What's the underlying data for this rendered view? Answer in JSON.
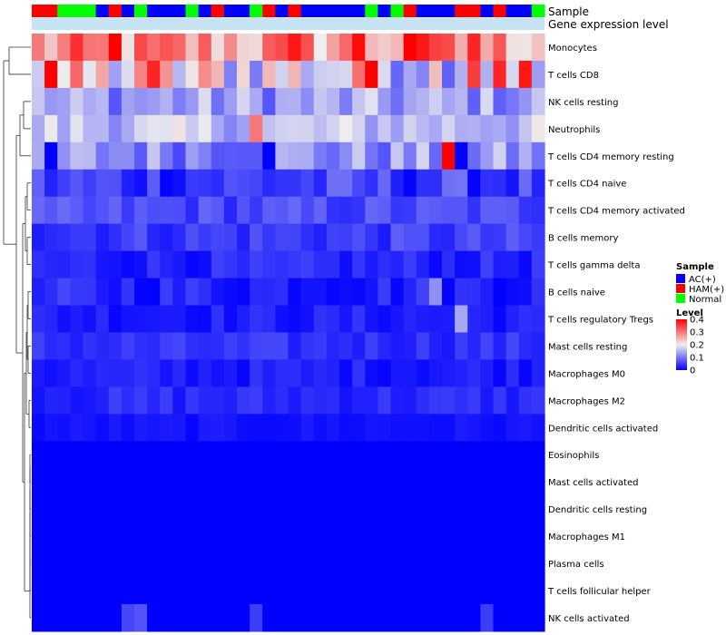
{
  "chart_data": {
    "type": "heatmap",
    "annotations": {
      "sample_label": "Sample",
      "gene_label": "Gene expression level",
      "gene_color": "#c6e3f4",
      "sample_sequence": [
        "HAM(+)",
        "HAM(+)",
        "Normal",
        "Normal",
        "Normal",
        "AC(+)",
        "HAM(+)",
        "AC(+)",
        "Normal",
        "AC(+)",
        "AC(+)",
        "AC(+)",
        "Normal",
        "AC(+)",
        "HAM(+)",
        "AC(+)",
        "AC(+)",
        "Normal",
        "HAM(+)",
        "AC(+)",
        "HAM(+)",
        "AC(+)",
        "AC(+)",
        "AC(+)",
        "AC(+)",
        "AC(+)",
        "Normal",
        "AC(+)",
        "Normal",
        "HAM(+)",
        "AC(+)",
        "AC(+)",
        "AC(+)",
        "HAM(+)",
        "HAM(+)",
        "AC(+)",
        "HAM(+)",
        "AC(+)",
        "AC(+)",
        "Normal"
      ]
    },
    "rows": [
      "Monocytes",
      "T cells CD8",
      "NK cells resting",
      "Neutrophils",
      "T cells CD4 memory resting",
      "T cells CD4 naive",
      "T cells CD4 memory activated",
      "B cells memory",
      "T cells gamma delta",
      "B cells naive",
      "T cells regulatory  Tregs",
      "Mast cells resting",
      "Macrophages M0",
      "Macrophages M2",
      "Dendritic cells activated",
      "Eosinophils",
      "Mast cells activated",
      "Dendritic cells resting",
      "Macrophages M1",
      "Plasma cells",
      "T cells follicular helper",
      "NK cells activated"
    ],
    "n_columns": 40,
    "row_base_levels": [
      0.27,
      0.2,
      0.13,
      0.16,
      0.12,
      0.05,
      0.06,
      0.05,
      0.03,
      0.03,
      0.025,
      0.04,
      0.025,
      0.035,
      0.015,
      0.0,
      0.0,
      0.0,
      0.0,
      0.0,
      0.0,
      0.0
    ],
    "row_variation": [
      0.09,
      0.12,
      0.06,
      0.05,
      0.06,
      0.05,
      0.03,
      0.03,
      0.025,
      0.03,
      0.02,
      0.02,
      0.02,
      0.02,
      0.01,
      0.0,
      0.0,
      0.0,
      0.0,
      0.0,
      0.0,
      0.03
    ],
    "highlight_cells": [
      {
        "row": 0,
        "col": 6,
        "value": 0.4
      },
      {
        "row": 0,
        "col": 20,
        "value": 0.38
      },
      {
        "row": 0,
        "col": 25,
        "value": 0.39
      },
      {
        "row": 0,
        "col": 29,
        "value": 0.4
      },
      {
        "row": 0,
        "col": 30,
        "value": 0.38
      },
      {
        "row": 0,
        "col": 34,
        "value": 0.37
      },
      {
        "row": 1,
        "col": 1,
        "value": 0.4
      },
      {
        "row": 1,
        "col": 9,
        "value": 0.37
      },
      {
        "row": 1,
        "col": 26,
        "value": 0.4
      },
      {
        "row": 1,
        "col": 34,
        "value": 0.35
      },
      {
        "row": 1,
        "col": 36,
        "value": 0.37
      },
      {
        "row": 1,
        "col": 38,
        "value": 0.38
      },
      {
        "row": 3,
        "col": 17,
        "value": 0.3
      },
      {
        "row": 4,
        "col": 32,
        "value": 0.4
      },
      {
        "row": 4,
        "col": 1,
        "value": 0.0
      },
      {
        "row": 4,
        "col": 18,
        "value": 0.0
      },
      {
        "row": 4,
        "col": 33,
        "value": 0.0
      },
      {
        "row": 9,
        "col": 31,
        "value": 0.12
      },
      {
        "row": 10,
        "col": 33,
        "value": 0.14
      },
      {
        "row": 21,
        "col": 7,
        "value": 0.06
      },
      {
        "row": 21,
        "col": 8,
        "value": 0.07
      },
      {
        "row": 21,
        "col": 17,
        "value": 0.05
      },
      {
        "row": 21,
        "col": 35,
        "value": 0.05
      }
    ],
    "legend": {
      "sample_title": "Sample",
      "sample_items": [
        {
          "label": "AC(+)",
          "color": "#0000ff"
        },
        {
          "label": "HAM(+)",
          "color": "#ff0000"
        },
        {
          "label": "Normal",
          "color": "#00ff00"
        }
      ],
      "level_title": "Level",
      "level_ticks": [
        0.4,
        0.3,
        0.2,
        0.1,
        0
      ],
      "level_tick_labels": [
        "0.4",
        "0.3",
        "0.2",
        "0.1",
        "0"
      ],
      "color_low": "#0000ff",
      "color_mid": "#eeeeee",
      "color_high": "#ff0000",
      "range": [
        0,
        0.4
      ]
    }
  }
}
